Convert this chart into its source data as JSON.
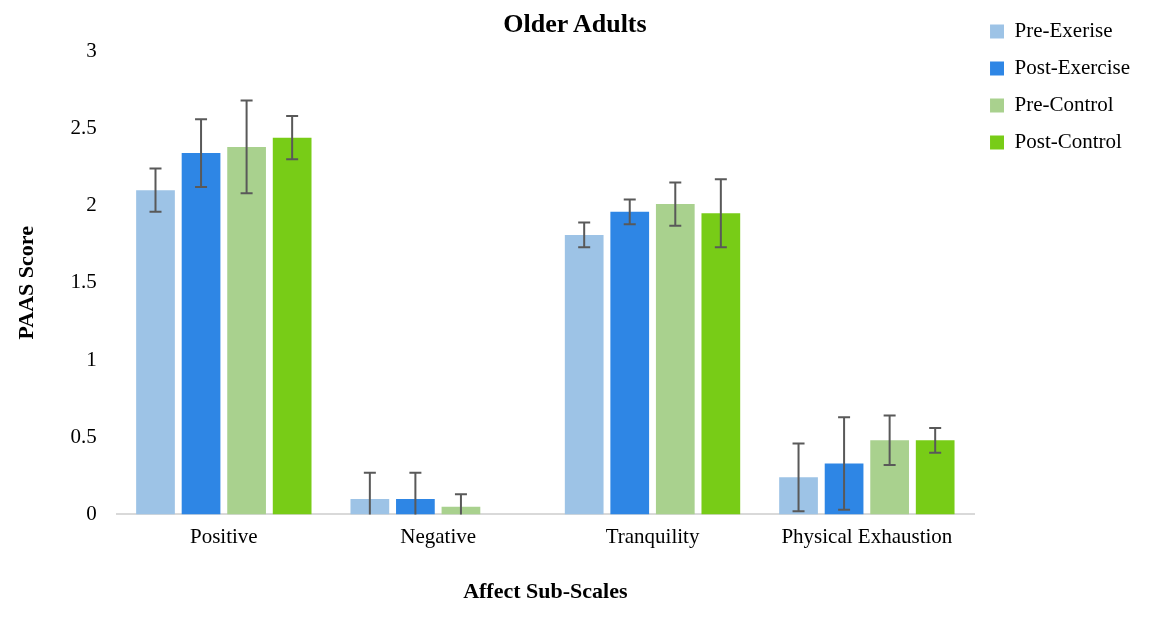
{
  "chart_data": {
    "type": "bar",
    "title": "Older Adults",
    "xlabel": "Affect Sub-Scales",
    "ylabel": "PAAS Score",
    "categories": [
      "Positive",
      "Negative",
      "Tranquility",
      "Physical Exhaustion"
    ],
    "series": [
      {
        "name": "Pre-Exerise",
        "color": "#9dc3e6",
        "values": [
          2.1,
          0.1,
          1.81,
          0.24
        ],
        "errors": [
          0.14,
          [
            0,
            0.27
          ],
          0.08,
          0.22
        ]
      },
      {
        "name": "Post-Exercise",
        "color": "#2e86e5",
        "values": [
          2.34,
          0.1,
          1.96,
          0.33
        ],
        "errors": [
          0.22,
          [
            0,
            0.27
          ],
          0.08,
          0.3
        ]
      },
      {
        "name": "Pre-Control",
        "color": "#a9d18e",
        "values": [
          2.38,
          0.05,
          2.01,
          0.48
        ],
        "errors": [
          0.3,
          [
            0,
            0.13
          ],
          0.14,
          0.16
        ]
      },
      {
        "name": "Post-Control",
        "color": "#78cc17",
        "values": [
          2.44,
          0,
          1.95,
          0.48
        ],
        "errors": [
          0.14,
          null,
          0.22,
          0.08
        ]
      }
    ],
    "ylim": [
      0,
      3
    ],
    "yticks": [
      0,
      0.5,
      1,
      1.5,
      2,
      2.5,
      3
    ],
    "grid": false,
    "legend": "top right"
  }
}
